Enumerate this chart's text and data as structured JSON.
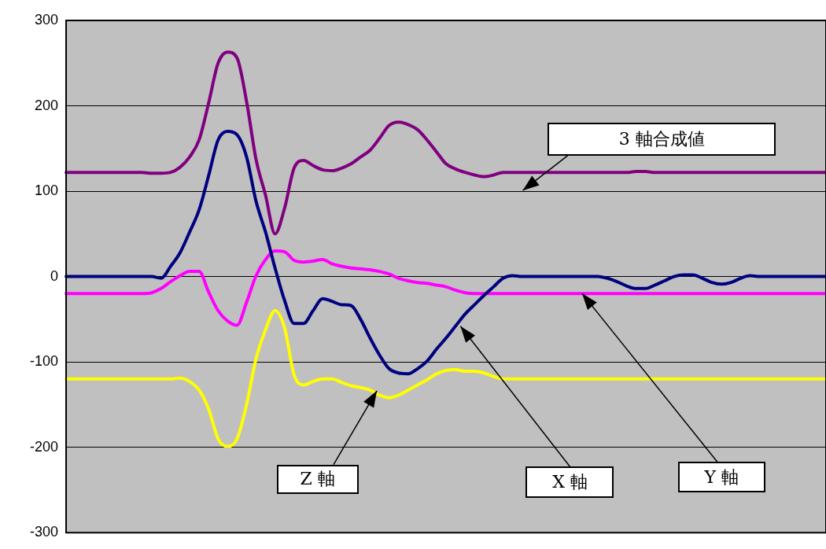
{
  "chart_data": {
    "type": "line",
    "categories": [
      null,
      null,
      null,
      null,
      null,
      null,
      null,
      null,
      null,
      null,
      null,
      null,
      null,
      null,
      null,
      null,
      null,
      null,
      null,
      null,
      null,
      null,
      null,
      null,
      null,
      null,
      null,
      null,
      null,
      null,
      null,
      null,
      null,
      null,
      null,
      null,
      null,
      null,
      null,
      null,
      null,
      null,
      null,
      null,
      null,
      null,
      null,
      null,
      null,
      null,
      null,
      null,
      null,
      null,
      null,
      null,
      null,
      null,
      null,
      null,
      null,
      null,
      null,
      null,
      null,
      null,
      null,
      null,
      null,
      null,
      null,
      null,
      null,
      null,
      null,
      null,
      null,
      null,
      null,
      null,
      null
    ],
    "series": [
      {
        "name": "3 軸合成値",
        "color": "#800080",
        "values": [
          122,
          122,
          122,
          122,
          122,
          122,
          122,
          122,
          122,
          121,
          121,
          122,
          128,
          140,
          160,
          203,
          250,
          263,
          256,
          205,
          137,
          95,
          50,
          80,
          127,
          136,
          130,
          125,
          124,
          127,
          132,
          140,
          148,
          162,
          177,
          181,
          178,
          172,
          160,
          146,
          132,
          126,
          122,
          119,
          117,
          119,
          122,
          122,
          122,
          122,
          122,
          122,
          122,
          122,
          122,
          122,
          122,
          122,
          122,
          122,
          123,
          123,
          122,
          122,
          122,
          122,
          122,
          122,
          122,
          122,
          122,
          122,
          122,
          122,
          122,
          122,
          122,
          122,
          122,
          122,
          122
        ]
      },
      {
        "name": "X 軸",
        "color": "#000080",
        "values": [
          0,
          0,
          0,
          0,
          0,
          0,
          0,
          0,
          0,
          0,
          -2,
          12,
          28,
          52,
          78,
          118,
          160,
          170,
          166,
          140,
          88,
          52,
          10,
          -28,
          -55,
          -55,
          -40,
          -26,
          -29,
          -33,
          -34,
          -50,
          -72,
          -92,
          -108,
          -113,
          -114,
          -108,
          -99,
          -85,
          -72,
          -58,
          -44,
          -33,
          -22,
          -12,
          -2,
          1,
          0,
          0,
          0,
          0,
          0,
          0,
          0,
          0,
          0,
          -2,
          -6,
          -11,
          -14,
          -14,
          -10,
          -5,
          0,
          2,
          2,
          -2,
          -7,
          -9,
          -7,
          -2,
          1,
          0,
          0,
          0,
          0,
          0,
          0,
          0,
          0
        ]
      },
      {
        "name": "Y 軸",
        "color": "#ff00ff",
        "values": [
          -20,
          -20,
          -20,
          -20,
          -20,
          -20,
          -20,
          -20,
          -20,
          -19,
          -14,
          -6,
          1,
          6,
          6,
          -18,
          -40,
          -52,
          -57,
          -30,
          1,
          20,
          30,
          29,
          19,
          17,
          18,
          20,
          15,
          12,
          10,
          9,
          8,
          6,
          3,
          -2,
          -5,
          -7,
          -8,
          -10,
          -12,
          -16,
          -19,
          -20,
          -20,
          -20,
          -20,
          -20,
          -20,
          -20,
          -20,
          -20,
          -20,
          -20,
          -20,
          -20,
          -20,
          -20,
          -20,
          -20,
          -20,
          -20,
          -20,
          -20,
          -20,
          -20,
          -20,
          -20,
          -20,
          -20,
          -20,
          -20,
          -20,
          -20,
          -20,
          -20,
          -20,
          -20,
          -20,
          -20,
          -20
        ]
      },
      {
        "name": "Z 軸",
        "color": "#ffff00",
        "values": [
          -120,
          -120,
          -120,
          -120,
          -120,
          -120,
          -120,
          -120,
          -120,
          -120,
          -120,
          -120,
          -119,
          -123,
          -133,
          -155,
          -190,
          -199,
          -190,
          -150,
          -96,
          -62,
          -40,
          -60,
          -115,
          -127,
          -123,
          -120,
          -120,
          -124,
          -128,
          -130,
          -133,
          -139,
          -142,
          -139,
          -133,
          -127,
          -121,
          -114,
          -110,
          -109,
          -111,
          -111,
          -113,
          -117,
          -120,
          -120,
          -120,
          -120,
          -120,
          -120,
          -120,
          -120,
          -120,
          -120,
          -120,
          -120,
          -120,
          -120,
          -120,
          -120,
          -120,
          -120,
          -120,
          -120,
          -120,
          -120,
          -120,
          -120,
          -120,
          -120,
          -120,
          -120,
          -120,
          -120,
          -120,
          -120,
          -120,
          -120,
          -120
        ]
      }
    ],
    "ylim": [
      -300,
      300
    ],
    "yticks": [
      -300,
      -200,
      -100,
      0,
      100,
      200,
      300
    ],
    "grid": "y",
    "legend": false,
    "tick_labels": "y",
    "marker": "none",
    "line_style": "solid"
  }
}
